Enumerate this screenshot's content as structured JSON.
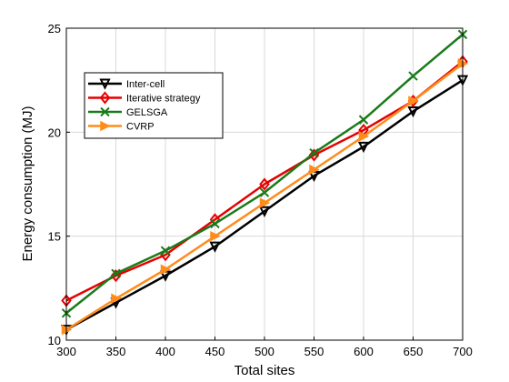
{
  "chart_data": {
    "type": "line",
    "xlabel": "Total sites",
    "ylabel": "Energy consumption (MJ)",
    "x": [
      300,
      350,
      400,
      450,
      500,
      550,
      600,
      650,
      700
    ],
    "xlim": [
      300,
      700
    ],
    "ylim": [
      10,
      25
    ],
    "xticks": [
      "300",
      "350",
      "400",
      "450",
      "500",
      "550",
      "600",
      "650",
      "700"
    ],
    "yticks": [
      "10",
      "15",
      "20",
      "25"
    ],
    "grid": true,
    "legend_position": "top-left",
    "series": [
      {
        "name": "Inter-cell",
        "color": "#000000",
        "marker": "triangle-down",
        "values": [
          10.5,
          11.8,
          13.1,
          14.5,
          16.2,
          17.9,
          19.3,
          21.0,
          22.5
        ]
      },
      {
        "name": "Iterative strategy",
        "color": "#e60000",
        "marker": "diamond",
        "values": [
          11.9,
          13.1,
          14.1,
          15.8,
          17.5,
          18.9,
          20.1,
          21.5,
          23.4
        ]
      },
      {
        "name": "GELSGA",
        "color": "#1a7a1a",
        "marker": "x",
        "values": [
          11.3,
          13.2,
          14.3,
          15.6,
          17.1,
          19.0,
          20.6,
          22.7,
          24.7
        ]
      },
      {
        "name": "CVRP",
        "color": "#ff8c1a",
        "marker": "triangle-right",
        "values": [
          10.5,
          12.0,
          13.4,
          15.0,
          16.6,
          18.2,
          19.8,
          21.5,
          23.3
        ]
      }
    ]
  }
}
